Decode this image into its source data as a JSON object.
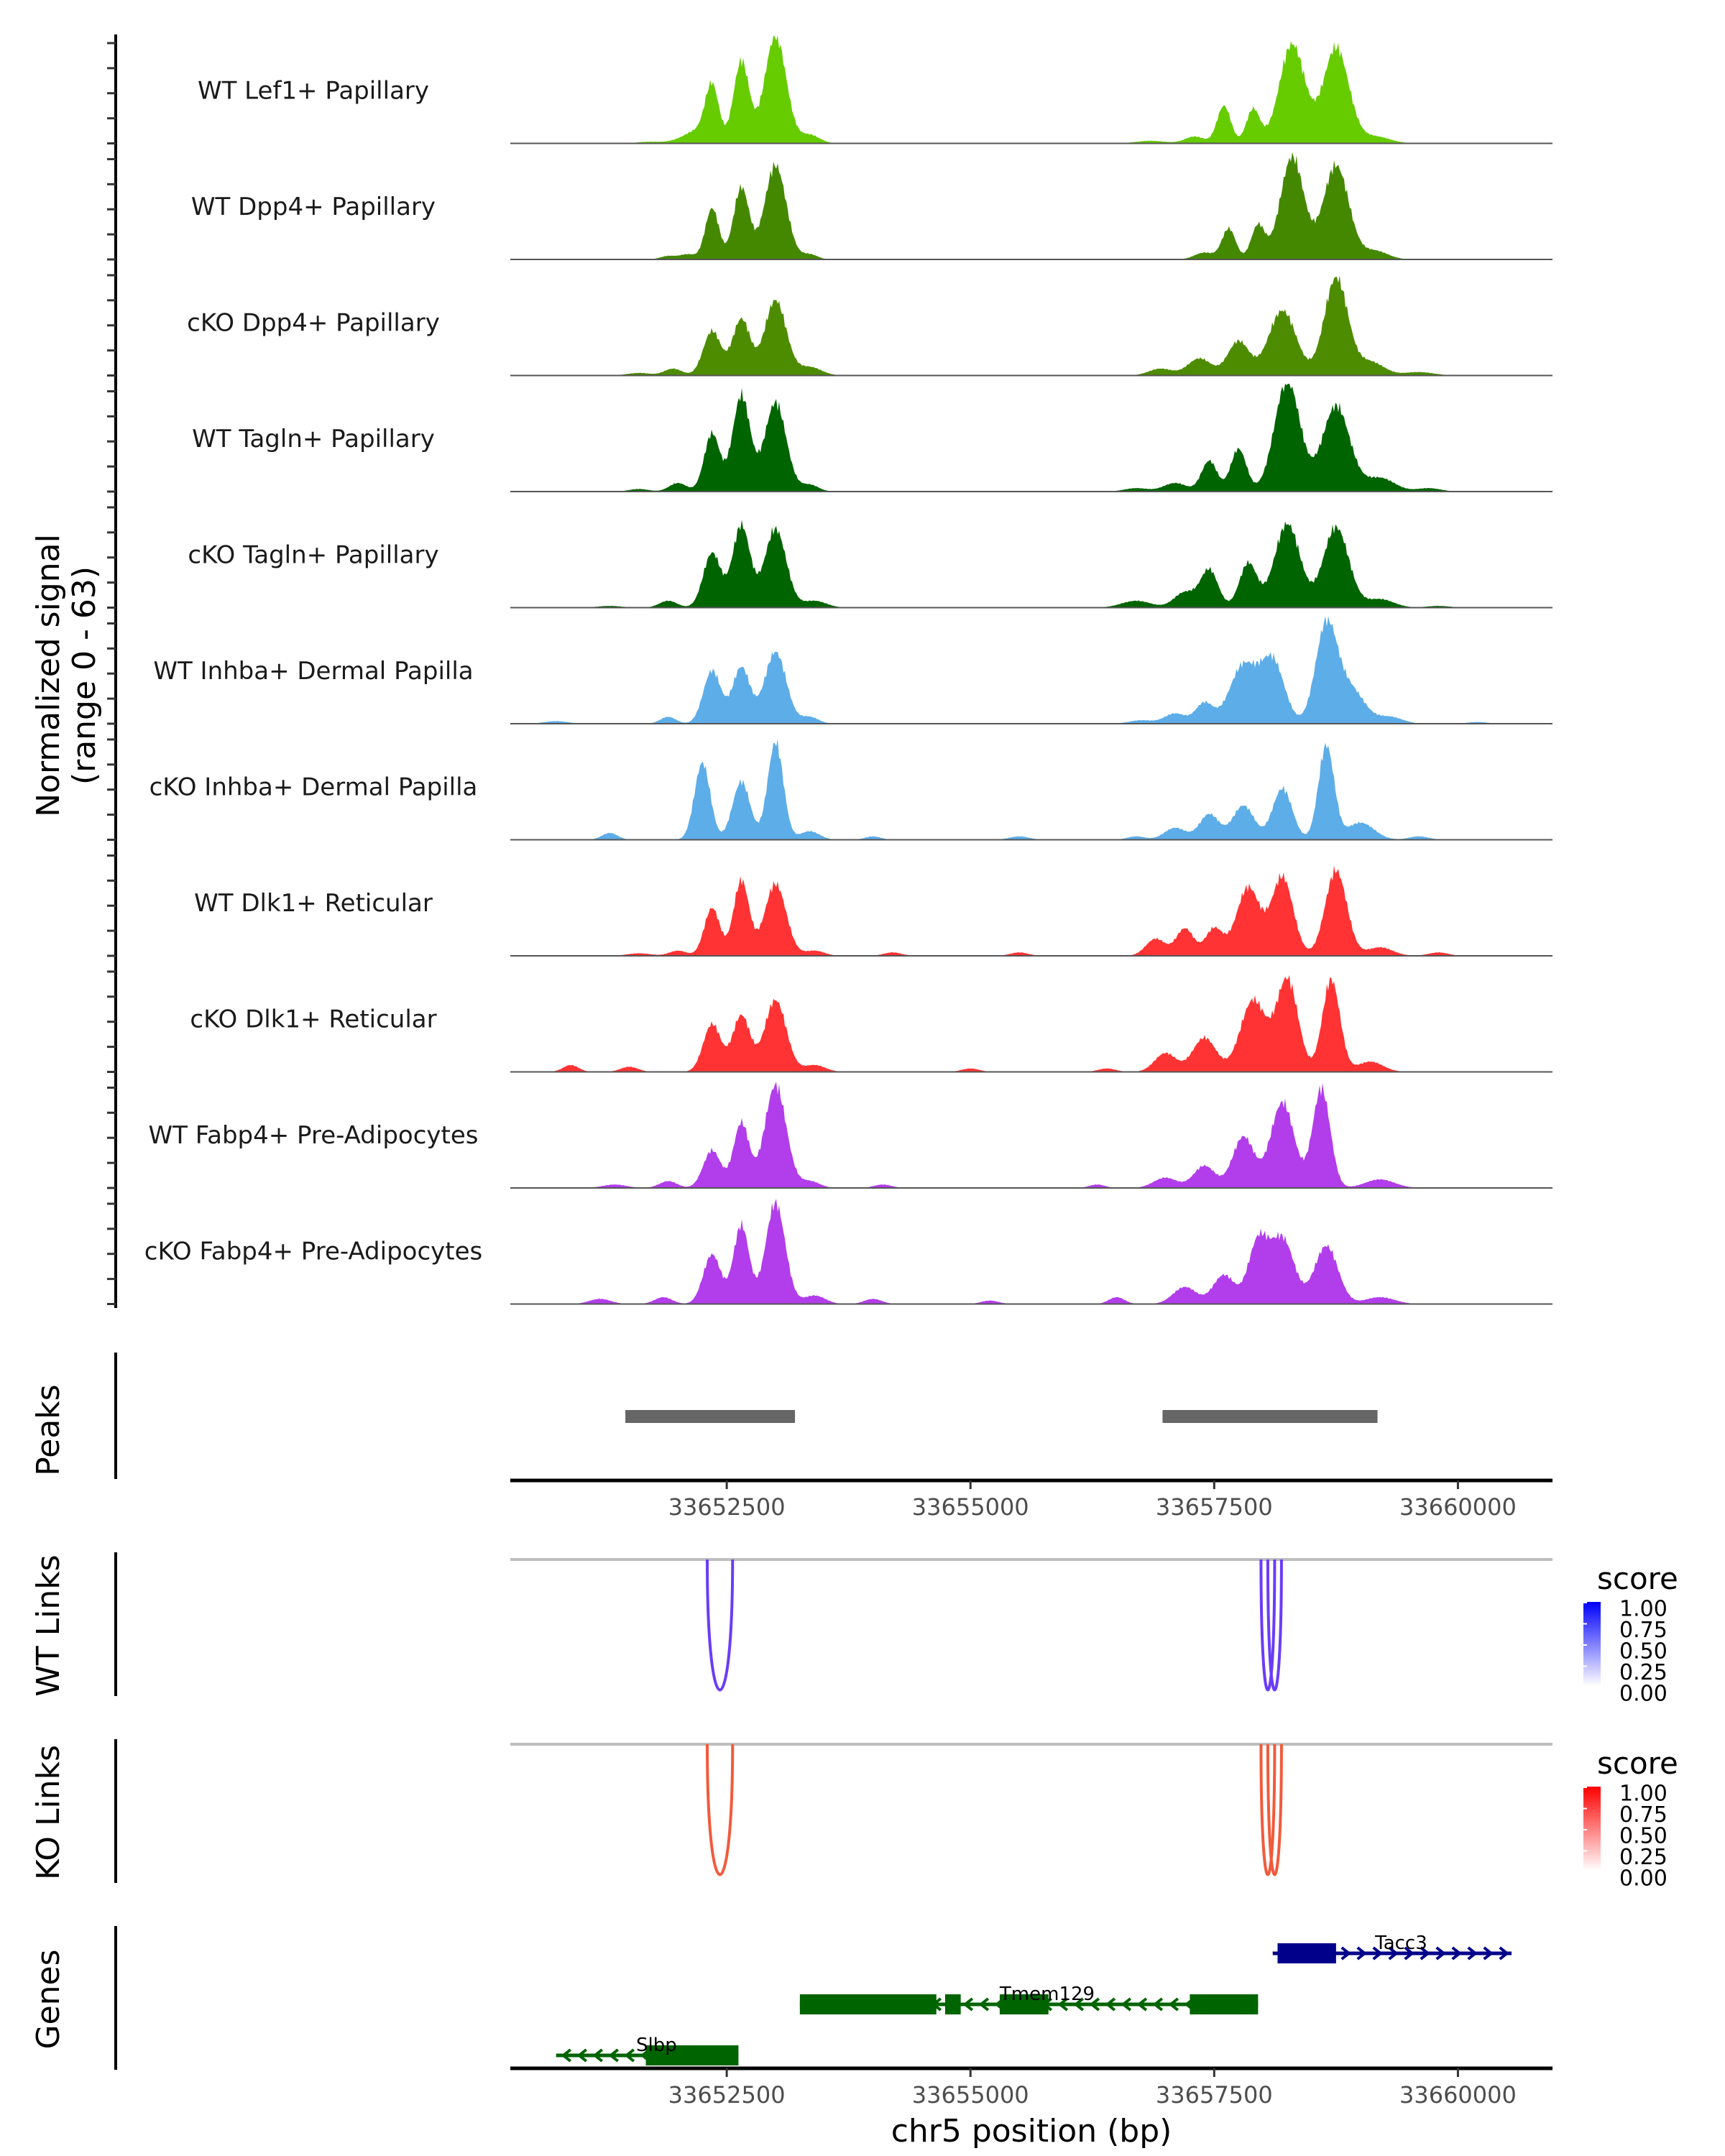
{
  "chart_data": {
    "type": "area",
    "title": "",
    "region": {
      "chrom": "chr5",
      "start": 33650280,
      "end": 33660970
    },
    "xlabel": "chr5 position (bp)",
    "ylabel_line1": "Normalized signal",
    "ylabel_line2": "(range 0 - 63)",
    "ylim": [
      0,
      63
    ],
    "x_ticks": [
      33652500,
      33655000,
      33657500,
      33660000
    ],
    "x_tick_labels": [
      "33652500",
      "33655000",
      "33657500",
      "33660000"
    ],
    "coverage_tracks": [
      {
        "name": "WT Lef1+ Papillary",
        "color": "#66CC00",
        "peaks": [
          [
            33651700,
            0.9,
            120
          ],
          [
            33652050,
            2,
            130
          ],
          [
            33652200,
            6,
            110
          ],
          [
            33652350,
            33,
            70
          ],
          [
            33652650,
            48,
            80
          ],
          [
            33653000,
            63,
            110
          ],
          [
            33653350,
            5,
            100
          ],
          [
            33656850,
            1.5,
            150
          ],
          [
            33657300,
            4,
            100
          ],
          [
            33657600,
            22,
            70
          ],
          [
            33657900,
            20,
            70
          ],
          [
            33658300,
            58,
            130
          ],
          [
            33658750,
            56,
            130
          ],
          [
            33659150,
            4,
            150
          ]
        ]
      },
      {
        "name": "WT Dpp4+ Papillary",
        "color": "#448800",
        "peaks": [
          [
            33651900,
            2,
            80
          ],
          [
            33652100,
            3,
            80
          ],
          [
            33652350,
            30,
            70
          ],
          [
            33652650,
            42,
            80
          ],
          [
            33653000,
            55,
            110
          ],
          [
            33653350,
            3,
            80
          ],
          [
            33657400,
            4,
            100
          ],
          [
            33657650,
            18,
            70
          ],
          [
            33657950,
            20,
            70
          ],
          [
            33658300,
            60,
            120
          ],
          [
            33658750,
            55,
            130
          ],
          [
            33659150,
            5,
            130
          ]
        ]
      },
      {
        "name": "cKO Dpp4+ Papillary",
        "color": "#4D8C00",
        "peaks": [
          [
            33651600,
            1.5,
            120
          ],
          [
            33651950,
            4,
            90
          ],
          [
            33652350,
            26,
            90
          ],
          [
            33652650,
            33,
            90
          ],
          [
            33653000,
            44,
            110
          ],
          [
            33653350,
            5,
            120
          ],
          [
            33656950,
            4,
            120
          ],
          [
            33657350,
            10,
            120
          ],
          [
            33657750,
            20,
            110
          ],
          [
            33658200,
            38,
            140
          ],
          [
            33658750,
            57,
            120
          ],
          [
            33659100,
            8,
            140
          ],
          [
            33659600,
            2,
            150
          ]
        ]
      },
      {
        "name": "WT Tagln+ Papillary",
        "color": "#006400",
        "peaks": [
          [
            33651600,
            1.5,
            100
          ],
          [
            33652000,
            5,
            90
          ],
          [
            33652350,
            34,
            80
          ],
          [
            33652650,
            56,
            90
          ],
          [
            33653000,
            52,
            110
          ],
          [
            33653350,
            4,
            90
          ],
          [
            33656700,
            2,
            120
          ],
          [
            33657100,
            5,
            120
          ],
          [
            33657450,
            18,
            80
          ],
          [
            33657750,
            25,
            80
          ],
          [
            33658250,
            65,
            130
          ],
          [
            33658750,
            50,
            140
          ],
          [
            33659200,
            8,
            150
          ],
          [
            33659700,
            2,
            120
          ]
        ]
      },
      {
        "name": "cKO Tagln+ Papillary",
        "color": "#006400",
        "peaks": [
          [
            33651300,
            1,
            120
          ],
          [
            33651900,
            4,
            90
          ],
          [
            33652350,
            32,
            90
          ],
          [
            33652650,
            48,
            90
          ],
          [
            33653000,
            46,
            110
          ],
          [
            33653400,
            4,
            120
          ],
          [
            33656700,
            4,
            150
          ],
          [
            33657200,
            9,
            110
          ],
          [
            33657450,
            22,
            90
          ],
          [
            33657850,
            26,
            90
          ],
          [
            33658250,
            49,
            130
          ],
          [
            33658750,
            47,
            130
          ],
          [
            33659200,
            5,
            140
          ],
          [
            33659800,
            1,
            120
          ]
        ]
      },
      {
        "name": "WT Inhba+ Dermal Papilla",
        "color": "#5DADE8",
        "peaks": [
          [
            33650750,
            1.5,
            120
          ],
          [
            33651900,
            4,
            80
          ],
          [
            33652350,
            31,
            90
          ],
          [
            33652650,
            33,
            90
          ],
          [
            33653000,
            42,
            110
          ],
          [
            33653350,
            4,
            90
          ],
          [
            33656750,
            2,
            120
          ],
          [
            33657100,
            6,
            110
          ],
          [
            33657400,
            12,
            90
          ],
          [
            33657800,
            34,
            140
          ],
          [
            33658100,
            36,
            120
          ],
          [
            33658650,
            57,
            110
          ],
          [
            33658900,
            20,
            140
          ],
          [
            33659300,
            4,
            130
          ],
          [
            33660200,
            1,
            100
          ]
        ]
      },
      {
        "name": "cKO Inhba+ Dermal Papilla",
        "color": "#5DADE8",
        "peaks": [
          [
            33651300,
            4,
            80
          ],
          [
            33652250,
            45,
            80
          ],
          [
            33652650,
            34,
            90
          ],
          [
            33653000,
            57,
            80
          ],
          [
            33653350,
            5,
            100
          ],
          [
            33654000,
            2,
            80
          ],
          [
            33655500,
            2,
            100
          ],
          [
            33656700,
            2,
            90
          ],
          [
            33657100,
            7,
            110
          ],
          [
            33657450,
            15,
            100
          ],
          [
            33657800,
            20,
            110
          ],
          [
            33658200,
            30,
            100
          ],
          [
            33658650,
            55,
            80
          ],
          [
            33659000,
            10,
            140
          ],
          [
            33659600,
            2,
            100
          ]
        ]
      },
      {
        "name": "WT Dlk1+ Reticular",
        "color": "#FF3333",
        "peaks": [
          [
            33651600,
            1.5,
            120
          ],
          [
            33652000,
            3,
            90
          ],
          [
            33652350,
            28,
            80
          ],
          [
            33652650,
            44,
            80
          ],
          [
            33653000,
            42,
            110
          ],
          [
            33653400,
            3,
            100
          ],
          [
            33654200,
            2,
            90
          ],
          [
            33655500,
            2,
            90
          ],
          [
            33656900,
            10,
            100
          ],
          [
            33657200,
            16,
            90
          ],
          [
            33657500,
            16,
            90
          ],
          [
            33657850,
            40,
            120
          ],
          [
            33658200,
            46,
            110
          ],
          [
            33658750,
            50,
            110
          ],
          [
            33659200,
            5,
            130
          ],
          [
            33659800,
            2,
            100
          ]
        ]
      },
      {
        "name": "cKO Dlk1+ Reticular",
        "color": "#FF3333",
        "peaks": [
          [
            33650900,
            4,
            80
          ],
          [
            33651500,
            3,
            90
          ],
          [
            33652350,
            28,
            90
          ],
          [
            33652650,
            33,
            90
          ],
          [
            33653000,
            42,
            110
          ],
          [
            33653400,
            4,
            110
          ],
          [
            33655000,
            2,
            90
          ],
          [
            33656400,
            2,
            90
          ],
          [
            33657000,
            11,
            110
          ],
          [
            33657400,
            20,
            120
          ],
          [
            33657900,
            42,
            130
          ],
          [
            33658250,
            54,
            110
          ],
          [
            33658700,
            54,
            90
          ],
          [
            33659100,
            6,
            130
          ]
        ]
      },
      {
        "name": "WT Fabp4+ Pre-Adipocytes",
        "color": "#B23DEB",
        "peaks": [
          [
            33651350,
            2,
            120
          ],
          [
            33651900,
            4,
            90
          ],
          [
            33652350,
            22,
            90
          ],
          [
            33652650,
            38,
            80
          ],
          [
            33653000,
            60,
            110
          ],
          [
            33653350,
            4,
            100
          ],
          [
            33654100,
            2,
            90
          ],
          [
            33656300,
            2,
            80
          ],
          [
            33657000,
            6,
            120
          ],
          [
            33657400,
            13,
            110
          ],
          [
            33657800,
            30,
            110
          ],
          [
            33658200,
            50,
            120
          ],
          [
            33658600,
            58,
            90
          ],
          [
            33659200,
            5,
            150
          ]
        ]
      },
      {
        "name": "cKO Fabp4+ Pre-Adipocytes",
        "color": "#B23DEB",
        "peaks": [
          [
            33651200,
            3,
            110
          ],
          [
            33651850,
            4,
            90
          ],
          [
            33652350,
            29,
            90
          ],
          [
            33652650,
            46,
            80
          ],
          [
            33653000,
            59,
            100
          ],
          [
            33653400,
            5,
            110
          ],
          [
            33654000,
            3,
            90
          ],
          [
            33655200,
            2,
            90
          ],
          [
            33656500,
            4,
            80
          ],
          [
            33657200,
            10,
            120
          ],
          [
            33657600,
            17,
            110
          ],
          [
            33657950,
            36,
            100
          ],
          [
            33658200,
            38,
            120
          ],
          [
            33658650,
            34,
            120
          ],
          [
            33659200,
            4,
            150
          ]
        ]
      }
    ],
    "peaks_track": {
      "label": "Peaks",
      "color": "#666666",
      "ranges": [
        [
          33651460,
          33653200
        ],
        [
          33656970,
          33659175
        ]
      ]
    },
    "link_tracks": [
      {
        "label": "WT Links",
        "color": "#6A3CF8",
        "legend": {
          "title": "score",
          "low": "#FFFFFF",
          "high": "#0000FF",
          "labels": [
            "1.00",
            "0.75",
            "0.50",
            "0.25",
            "0.00"
          ]
        },
        "links": [
          [
            33652300,
            33652560,
            0.8
          ],
          [
            33657980,
            33658120,
            0.8
          ],
          [
            33658050,
            33658190,
            0.8
          ]
        ]
      },
      {
        "label": "KO Links",
        "color": "#F25A3C",
        "legend": {
          "title": "score",
          "low": "#FFFFFF",
          "high": "#FF0000",
          "labels": [
            "1.00",
            "0.75",
            "0.50",
            "0.25",
            "0.00"
          ]
        },
        "links": [
          [
            33652300,
            33652560,
            0.8
          ],
          [
            33657980,
            33658120,
            0.8
          ],
          [
            33658050,
            33658190,
            0.8
          ]
        ]
      }
    ],
    "genes_track": {
      "label": "Genes",
      "genes": [
        {
          "name": "Tacc3",
          "strand": "+",
          "color": "#00008B",
          "row": 0,
          "start": 33658100,
          "end": 33660550,
          "exons": [
            [
              33658150,
              33658750
            ]
          ]
        },
        {
          "name": "Tmem129",
          "strand": "-",
          "color": "#006400",
          "row": 1,
          "start": 33653250,
          "end": 33657950,
          "exons": [
            [
              33653250,
              33654650
            ],
            [
              33654740,
              33654900
            ],
            [
              33655300,
              33655800
            ],
            [
              33657250,
              33657950
            ]
          ]
        },
        {
          "name": "Slbp",
          "strand": "-",
          "color": "#006400",
          "row": 2,
          "start": 33650750,
          "end": 33652620,
          "exons": [
            [
              33651670,
              33652620
            ]
          ]
        }
      ]
    }
  }
}
